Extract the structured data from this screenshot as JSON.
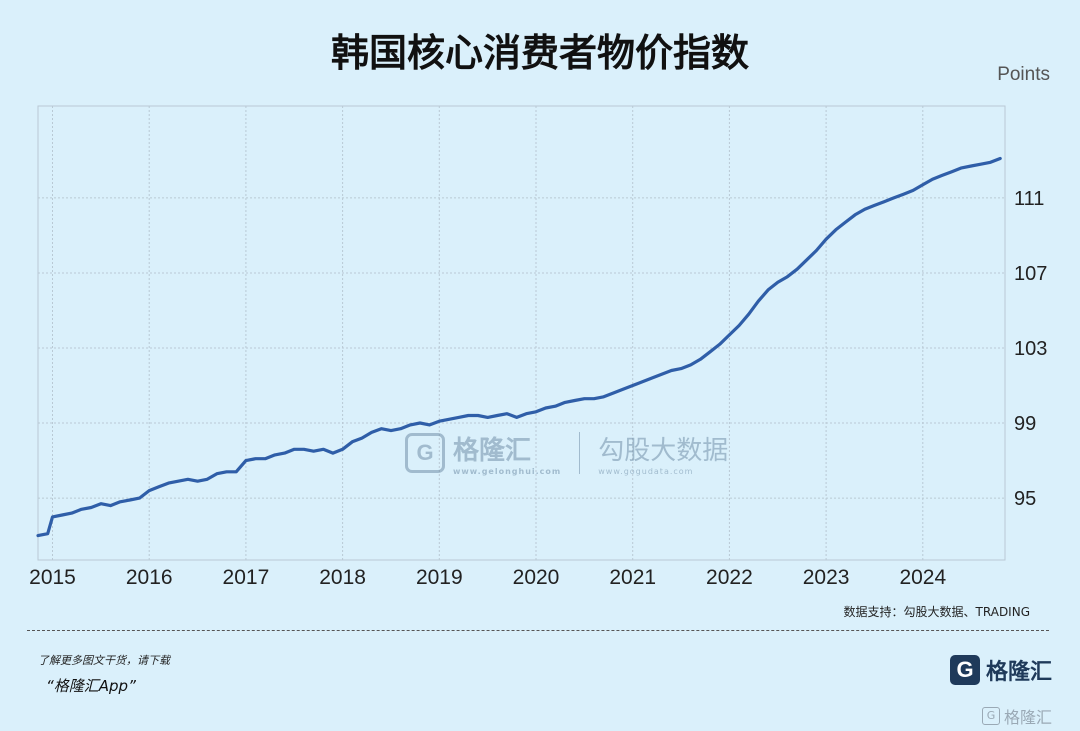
{
  "page": {
    "title": "韩国核心消费者物价指数",
    "unit": "Points",
    "source": "数据支持：勾股大数据、TRADING",
    "promo_line1": "了解更多图文干货，请下载",
    "promo_line2": "“格隆汇App”",
    "logo_text": "格隆汇",
    "logo_mark": "G",
    "corner_watermark": "格隆汇",
    "watermark_a": "格隆汇",
    "watermark_a_sub": "www.gelonghui.com",
    "watermark_b": "勾股大数据",
    "watermark_b_sub": "www.gogudata.com"
  },
  "colors": {
    "background": "#daf0fb",
    "line": "#2f5ea8",
    "grid": "#b9c9d4"
  },
  "chart_data": {
    "type": "line",
    "title": "韩国核心消费者物价指数",
    "ylabel": "Points",
    "x_ticks": [
      "2015",
      "2016",
      "2017",
      "2018",
      "2019",
      "2020",
      "2021",
      "2022",
      "2023",
      "2024"
    ],
    "y_ticks": [
      95,
      99,
      103,
      107,
      111
    ],
    "xlim": [
      2014.85,
      2024.85
    ],
    "ylim": [
      91.7,
      115.9
    ],
    "y_axis_side": "right",
    "grid": true,
    "legend": "none",
    "series": [
      {
        "name": "",
        "x": [
          2014.85,
          2014.95,
          2015.0,
          2015.1,
          2015.2,
          2015.3,
          2015.4,
          2015.5,
          2015.6,
          2015.7,
          2015.8,
          2015.9,
          2016.0,
          2016.1,
          2016.2,
          2016.3,
          2016.4,
          2016.5,
          2016.6,
          2016.7,
          2016.8,
          2016.9,
          2017.0,
          2017.1,
          2017.2,
          2017.3,
          2017.4,
          2017.5,
          2017.6,
          2017.7,
          2017.8,
          2017.9,
          2018.0,
          2018.1,
          2018.2,
          2018.3,
          2018.4,
          2018.5,
          2018.6,
          2018.7,
          2018.8,
          2018.9,
          2019.0,
          2019.1,
          2019.2,
          2019.3,
          2019.4,
          2019.5,
          2019.6,
          2019.7,
          2019.8,
          2019.9,
          2020.0,
          2020.1,
          2020.2,
          2020.3,
          2020.4,
          2020.5,
          2020.6,
          2020.7,
          2020.8,
          2020.9,
          2021.0,
          2021.1,
          2021.2,
          2021.3,
          2021.4,
          2021.5,
          2021.6,
          2021.7,
          2021.8,
          2021.9,
          2022.0,
          2022.1,
          2022.2,
          2022.3,
          2022.4,
          2022.5,
          2022.6,
          2022.7,
          2022.8,
          2022.9,
          2023.0,
          2023.1,
          2023.2,
          2023.3,
          2023.4,
          2023.5,
          2023.6,
          2023.7,
          2023.8,
          2023.9,
          2024.0,
          2024.1,
          2024.2,
          2024.3,
          2024.4,
          2024.5,
          2024.6,
          2024.7,
          2024.8
        ],
        "values": [
          93.0,
          93.1,
          94.0,
          94.1,
          94.2,
          94.4,
          94.5,
          94.7,
          94.6,
          94.8,
          94.9,
          95.0,
          95.4,
          95.6,
          95.8,
          95.9,
          96.0,
          95.9,
          96.0,
          96.3,
          96.4,
          96.4,
          97.0,
          97.1,
          97.1,
          97.3,
          97.4,
          97.6,
          97.6,
          97.5,
          97.6,
          97.4,
          97.6,
          98.0,
          98.2,
          98.5,
          98.7,
          98.6,
          98.7,
          98.9,
          99.0,
          98.9,
          99.1,
          99.2,
          99.3,
          99.4,
          99.4,
          99.3,
          99.4,
          99.5,
          99.3,
          99.5,
          99.6,
          99.8,
          99.9,
          100.1,
          100.2,
          100.3,
          100.3,
          100.4,
          100.6,
          100.8,
          101.0,
          101.2,
          101.4,
          101.6,
          101.8,
          101.9,
          102.1,
          102.4,
          102.8,
          103.2,
          103.7,
          104.2,
          104.8,
          105.5,
          106.1,
          106.5,
          106.8,
          107.2,
          107.7,
          108.2,
          108.8,
          109.3,
          109.7,
          110.1,
          110.4,
          110.6,
          110.8,
          111.0,
          111.2,
          111.4,
          111.7,
          112.0,
          112.2,
          112.4,
          112.6,
          112.7,
          112.8,
          112.9,
          113.1
        ]
      }
    ]
  }
}
